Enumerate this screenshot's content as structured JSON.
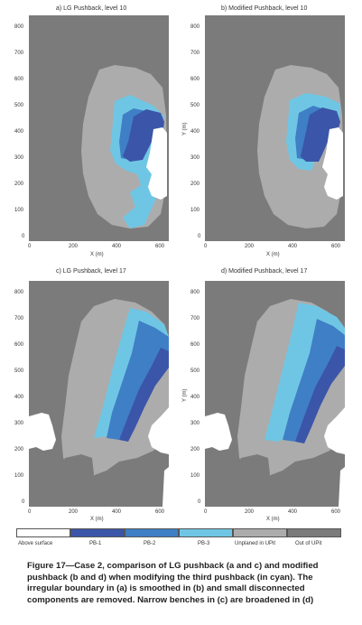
{
  "panels": [
    {
      "title": "a) LG Pushback, level 10",
      "xlabel": "X (m)",
      "ylabel": "",
      "yticks": [
        "800",
        "700",
        "600",
        "500",
        "400",
        "300",
        "200",
        "100",
        "0"
      ],
      "xticks": [
        "0",
        "200",
        "400",
        "600"
      ]
    },
    {
      "title": "b) Modified Pushback, level 10",
      "xlabel": "X (m)",
      "ylabel": "Y (m)",
      "yticks": [
        "800",
        "700",
        "600",
        "500",
        "400",
        "300",
        "200",
        "100",
        "0"
      ],
      "xticks": [
        "0",
        "200",
        "400",
        "600"
      ]
    },
    {
      "title": "c) LG Pushback, level 17",
      "xlabel": "X (m)",
      "ylabel": "",
      "yticks": [
        "800",
        "700",
        "600",
        "500",
        "400",
        "300",
        "200",
        "100",
        "0"
      ],
      "xticks": [
        "0",
        "200",
        "400",
        "600"
      ]
    },
    {
      "title": "d) Modified Pushback, level 17",
      "xlabel": "X (m)",
      "ylabel": "Y (m)",
      "yticks": [
        "800",
        "700",
        "600",
        "500",
        "400",
        "300",
        "200",
        "100",
        "0"
      ],
      "xticks": [
        "0",
        "200",
        "400",
        "600"
      ]
    }
  ],
  "legend": [
    {
      "label": "Above surface",
      "color": "#ffffff"
    },
    {
      "label": "PB-1",
      "color": "#3b55a8"
    },
    {
      "label": "PB-2",
      "color": "#3f7fc6"
    },
    {
      "label": "PB-3",
      "color": "#6fc6e4"
    },
    {
      "label": "Unplaned in UPit",
      "color": "#acacac"
    },
    {
      "label": "Out of UPit",
      "color": "#7b7b7b"
    }
  ],
  "colors": {
    "outside": "#7b7b7b",
    "unplanned": "#acacac",
    "pb1": "#3b55a8",
    "pb2": "#3f7fc6",
    "pb3": "#6fc6e4",
    "above": "#ffffff"
  },
  "caption": [
    "Figure 17—Case 2, comparison of LG pushback (a and c) and modified",
    "pushback (b and d) when modifying the third pushback (in cyan). The",
    "irregular boundary in (a) is smoothed in (b) and small disconnected",
    "components are removed. Narrow benches in (c) are broadened in (d)"
  ]
}
